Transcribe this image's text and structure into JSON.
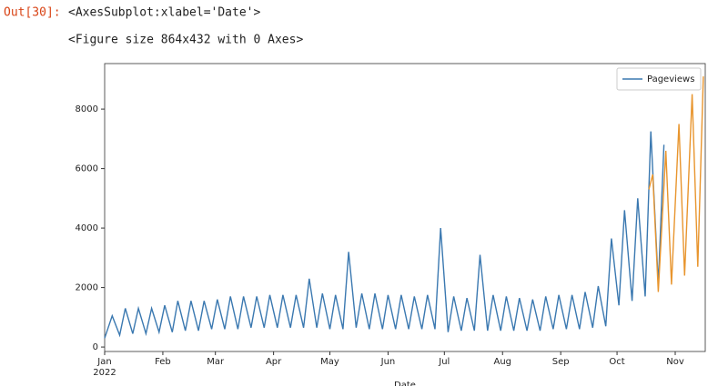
{
  "output": {
    "prompt": "Out[30]:",
    "repr": "<AxesSubplot:xlabel='Date'>",
    "figure_repr": "<Figure size 864x432 with 0 Axes>"
  },
  "chart_data": {
    "type": "line",
    "xlabel": "Date",
    "x_year_label": "2022",
    "legend": "upper right",
    "xlim": [
      "2022-01-01",
      "2022-11-17"
    ],
    "ylim": [
      -150,
      9530
    ],
    "yticks": [
      0,
      2000,
      4000,
      6000,
      8000
    ],
    "xticks": [
      {
        "value": "2022-01-01",
        "label": "Jan"
      },
      {
        "value": "2022-02-01",
        "label": "Feb"
      },
      {
        "value": "2022-03-01",
        "label": "Mar"
      },
      {
        "value": "2022-04-01",
        "label": "Apr"
      },
      {
        "value": "2022-05-01",
        "label": "May"
      },
      {
        "value": "2022-06-01",
        "label": "Jun"
      },
      {
        "value": "2022-07-01",
        "label": "Jul"
      },
      {
        "value": "2022-08-01",
        "label": "Aug"
      },
      {
        "value": "2022-09-01",
        "label": "Sep"
      },
      {
        "value": "2022-10-01",
        "label": "Oct"
      },
      {
        "value": "2022-11-01",
        "label": "Nov"
      }
    ],
    "series": [
      {
        "name": "Pageviews",
        "color": "#3a78b0",
        "x": [
          "2022-01-01",
          "2022-01-05",
          "2022-01-09",
          "2022-01-12",
          "2022-01-16",
          "2022-01-19",
          "2022-01-23",
          "2022-01-26",
          "2022-01-30",
          "2022-02-02",
          "2022-02-06",
          "2022-02-09",
          "2022-02-13",
          "2022-02-16",
          "2022-02-20",
          "2022-02-23",
          "2022-02-27",
          "2022-03-02",
          "2022-03-06",
          "2022-03-09",
          "2022-03-13",
          "2022-03-16",
          "2022-03-20",
          "2022-03-23",
          "2022-03-27",
          "2022-03-30",
          "2022-04-03",
          "2022-04-06",
          "2022-04-10",
          "2022-04-13",
          "2022-04-17",
          "2022-04-20",
          "2022-04-24",
          "2022-04-27",
          "2022-05-01",
          "2022-05-04",
          "2022-05-08",
          "2022-05-11",
          "2022-05-15",
          "2022-05-18",
          "2022-05-22",
          "2022-05-25",
          "2022-05-29",
          "2022-06-01",
          "2022-06-05",
          "2022-06-08",
          "2022-06-12",
          "2022-06-15",
          "2022-06-19",
          "2022-06-22",
          "2022-06-26",
          "2022-06-29",
          "2022-07-03",
          "2022-07-06",
          "2022-07-10",
          "2022-07-13",
          "2022-07-17",
          "2022-07-20",
          "2022-07-24",
          "2022-07-27",
          "2022-07-31",
          "2022-08-03",
          "2022-08-07",
          "2022-08-10",
          "2022-08-14",
          "2022-08-17",
          "2022-08-21",
          "2022-08-24",
          "2022-08-28",
          "2022-08-31",
          "2022-09-04",
          "2022-09-07",
          "2022-09-11",
          "2022-09-14",
          "2022-09-18",
          "2022-09-21",
          "2022-09-25",
          "2022-09-28",
          "2022-10-02",
          "2022-10-05",
          "2022-10-09",
          "2022-10-12",
          "2022-10-16",
          "2022-10-19",
          "2022-10-23",
          "2022-10-26"
        ],
        "values": [
          300,
          1050,
          400,
          1300,
          450,
          1300,
          450,
          1300,
          500,
          1400,
          500,
          1550,
          550,
          1550,
          550,
          1550,
          600,
          1600,
          600,
          1700,
          600,
          1700,
          650,
          1700,
          650,
          1750,
          650,
          1750,
          650,
          1750,
          650,
          2300,
          650,
          1800,
          600,
          1750,
          600,
          3200,
          650,
          1800,
          600,
          1800,
          600,
          1750,
          600,
          1750,
          600,
          1700,
          600,
          1750,
          600,
          4000,
          500,
          1700,
          550,
          1650,
          550,
          3100,
          550,
          1750,
          550,
          1700,
          550,
          1650,
          550,
          1600,
          550,
          1700,
          600,
          1750,
          600,
          1750,
          600,
          1850,
          650,
          2050,
          700,
          3650,
          1400,
          4600,
          1550,
          5000,
          1700,
          7250,
          2100,
          6800
        ]
      },
      {
        "color": "#e8952e",
        "x": [
          "2022-10-18",
          "2022-10-20",
          "2022-10-23",
          "2022-10-27",
          "2022-10-30",
          "2022-11-03",
          "2022-11-06",
          "2022-11-10",
          "2022-11-13",
          "2022-11-16"
        ],
        "values": [
          5300,
          5800,
          1850,
          6600,
          2100,
          7500,
          2400,
          8500,
          2700,
          9100
        ]
      }
    ]
  }
}
